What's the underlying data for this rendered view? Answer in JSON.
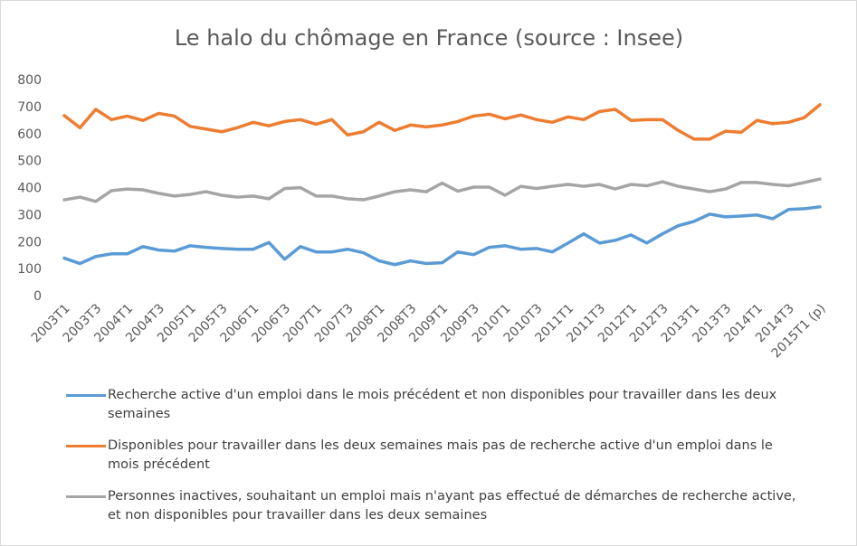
{
  "chart_data": {
    "type": "line",
    "title": "Le halo du chômage en France (source : Insee)",
    "categories": [
      "2003T1",
      null,
      "2003T3",
      null,
      "2004T1",
      null,
      "2004T3",
      null,
      "2005T1",
      null,
      "2005T3",
      null,
      "2006T1",
      null,
      "2006T3",
      null,
      "2007T1",
      null,
      "2007T3",
      null,
      "2008T1",
      null,
      "2008T3",
      null,
      "2009T1",
      null,
      "2009T3",
      null,
      "2010T1",
      null,
      "2010T3",
      null,
      "2011T1",
      null,
      "2011T3",
      null,
      "2012T1",
      null,
      "2012T3",
      null,
      "2013T1",
      null,
      "2013T3",
      null,
      "2014T1",
      null,
      "2014T3",
      null,
      "2015T1 (p)"
    ],
    "series": [
      {
        "name": "Recherche active d'un emploi dans le mois précédent et non disponibles pour travailler dans les deux semaines",
        "color": "#5b9bd5",
        "values": [
          142,
          122,
          148,
          158,
          158,
          185,
          172,
          168,
          188,
          182,
          178,
          175,
          175,
          200,
          138,
          185,
          165,
          165,
          175,
          162,
          132,
          118,
          132,
          122,
          125,
          165,
          155,
          182,
          188,
          175,
          178,
          165,
          198,
          232,
          198,
          208,
          228,
          198,
          232,
          262,
          278,
          305,
          295,
          298,
          302,
          288,
          322,
          325,
          332
        ]
      },
      {
        "name": "Disponibles pour travailler dans les deux semaines mais pas de recherche active d'un emploi dans le mois précédent",
        "color": "#ed7d31",
        "values": [
          670,
          625,
          693,
          655,
          668,
          652,
          678,
          668,
          630,
          620,
          610,
          625,
          645,
          632,
          648,
          655,
          638,
          655,
          598,
          610,
          645,
          615,
          635,
          628,
          635,
          648,
          668,
          675,
          658,
          672,
          655,
          645,
          665,
          655,
          685,
          693,
          652,
          655,
          655,
          615,
          583,
          583,
          612,
          608,
          652,
          640,
          645,
          662,
          710
        ]
      },
      {
        "name": "Personnes inactives, souhaitant un emploi mais n'ayant pas effectué de démarches de recherche active, et non disponibles pour travailler dans les deux semaines",
        "color": "#a5a5a5",
        "values": [
          358,
          368,
          352,
          392,
          398,
          395,
          382,
          372,
          378,
          388,
          375,
          368,
          372,
          362,
          400,
          403,
          372,
          372,
          362,
          358,
          372,
          388,
          395,
          388,
          420,
          390,
          405,
          405,
          375,
          408,
          400,
          408,
          415,
          408,
          415,
          398,
          415,
          410,
          425,
          408,
          398,
          388,
          398,
          422,
          422,
          415,
          410,
          422,
          435
        ]
      }
    ],
    "ylim": [
      0,
      800
    ],
    "yticks": [
      0,
      100,
      200,
      300,
      400,
      500,
      600,
      700,
      800
    ],
    "grid": false
  }
}
